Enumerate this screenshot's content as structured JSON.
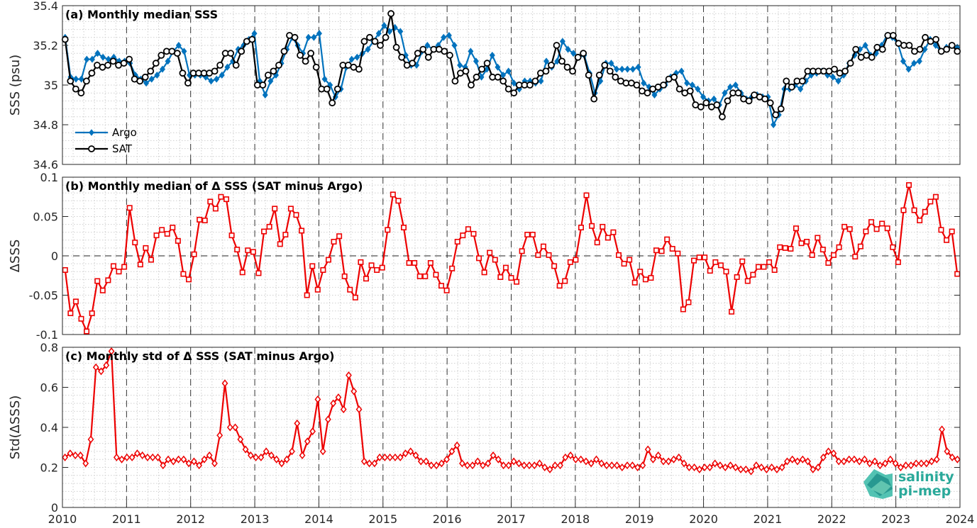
{
  "chart_data": [
    {
      "type": "line",
      "title": "(a) Monthly median SSS",
      "ylabel": "SSS (psu)",
      "xlim": [
        2010,
        2024
      ],
      "ylim": [
        34.6,
        35.4
      ],
      "yticks": [
        "34.6",
        "34.8",
        "35",
        "35.2",
        "35.4"
      ],
      "xticks": [
        "2010",
        "2011",
        "2012",
        "2013",
        "2014",
        "2015",
        "2016",
        "2017",
        "2018",
        "2019",
        "2020",
        "2021",
        "2022",
        "2023",
        "2024"
      ],
      "grid": "dotted",
      "legend_position": "lower-left",
      "series": [
        {
          "name": "Argo",
          "color": "#0072bd",
          "marker": "diamond",
          "values": [
            35.24,
            35.04,
            35.03,
            35.03,
            35.13,
            35.13,
            35.16,
            35.14,
            35.13,
            35.14,
            35.12,
            35.12,
            35.11,
            35.05,
            35.03,
            35.01,
            35.03,
            35.05,
            35.08,
            35.12,
            35.17,
            35.2,
            35.17,
            35.05,
            35.05,
            35.05,
            35.04,
            35.02,
            35.03,
            35.05,
            35.09,
            35.12,
            35.18,
            35.2,
            35.23,
            35.26,
            35.02,
            34.95,
            35.02,
            35.05,
            35.11,
            35.18,
            35.24,
            35.2,
            35.16,
            35.24,
            35.24,
            35.26,
            35.03,
            35.0,
            34.94,
            34.98,
            35.09,
            35.13,
            35.14,
            35.16,
            35.18,
            35.22,
            35.26,
            35.3,
            35.27,
            35.29,
            35.27,
            35.15,
            35.1,
            35.1,
            35.17,
            35.2,
            35.18,
            35.2,
            35.24,
            35.25,
            35.2,
            35.1,
            35.09,
            35.17,
            35.12,
            35.04,
            35.08,
            35.15,
            35.09,
            35.05,
            35.07,
            35.01,
            34.98,
            35.02,
            35.02,
            35.01,
            35.02,
            35.12,
            35.09,
            35.12,
            35.22,
            35.18,
            35.16,
            35.14,
            35.15,
            35.06,
            34.96,
            35.02,
            35.11,
            35.11,
            35.08,
            35.08,
            35.08,
            35.08,
            35.09,
            35.01,
            34.99,
            34.95,
            34.98,
            35.0,
            35.04,
            35.06,
            35.07,
            35.01,
            35.0,
            34.98,
            34.94,
            34.92,
            34.93,
            34.9,
            34.96,
            34.99,
            35.0,
            34.96,
            34.93,
            34.94,
            34.95,
            34.94,
            34.94,
            34.8,
            34.85,
            34.98,
            34.98,
            35.0,
            34.98,
            35.02,
            35.05,
            35.06,
            35.07,
            35.05,
            35.04,
            35.02,
            35.05,
            35.11,
            35.15,
            35.18,
            35.2,
            35.15,
            35.16,
            35.2,
            35.25,
            35.24,
            35.21,
            35.12,
            35.08,
            35.11,
            35.12,
            35.18,
            35.23,
            35.2,
            35.17,
            35.19,
            35.2,
            35.19
          ]
        },
        {
          "name": "SAT",
          "color": "#000000",
          "marker": "circle",
          "values": [
            35.23,
            35.02,
            34.98,
            34.96,
            35.02,
            35.06,
            35.1,
            35.09,
            35.1,
            35.12,
            35.1,
            35.11,
            35.13,
            35.03,
            35.02,
            35.04,
            35.07,
            35.11,
            35.15,
            35.17,
            35.17,
            35.16,
            35.06,
            35.01,
            35.06,
            35.06,
            35.06,
            35.06,
            35.07,
            35.1,
            35.16,
            35.16,
            35.1,
            35.17,
            35.22,
            35.23,
            35.0,
            35.0,
            35.05,
            35.07,
            35.1,
            35.17,
            35.25,
            35.24,
            35.15,
            35.12,
            35.16,
            35.09,
            34.98,
            34.98,
            34.91,
            34.98,
            35.1,
            35.1,
            35.09,
            35.08,
            35.22,
            35.24,
            35.22,
            35.2,
            35.24,
            35.36,
            35.19,
            35.14,
            35.1,
            35.11,
            35.16,
            35.18,
            35.14,
            35.18,
            35.18,
            35.17,
            35.15,
            35.02,
            35.06,
            35.07,
            35.0,
            35.04,
            35.08,
            35.11,
            35.04,
            35.04,
            35.02,
            34.98,
            34.96,
            35.0,
            35.0,
            35.0,
            35.02,
            35.06,
            35.07,
            35.1,
            35.2,
            35.12,
            35.09,
            35.07,
            35.14,
            35.16,
            35.05,
            34.93,
            35.05,
            35.1,
            35.07,
            35.04,
            35.02,
            35.01,
            35.01,
            35.0,
            34.97,
            34.96,
            34.98,
            34.99,
            35.0,
            35.03,
            35.04,
            34.98,
            34.96,
            34.97,
            34.9,
            34.89,
            34.91,
            34.89,
            34.9,
            34.84,
            34.92,
            34.96,
            34.96,
            34.93,
            34.92,
            34.95,
            34.94,
            34.93,
            34.91,
            34.85,
            34.88,
            35.02,
            34.99,
            35.02,
            35.02,
            35.07,
            35.07,
            35.07,
            35.07,
            35.07,
            35.08,
            35.06,
            35.07,
            35.11,
            35.18,
            35.14,
            35.15,
            35.14,
            35.19,
            35.18,
            35.25,
            35.25,
            35.21,
            35.2,
            35.2,
            35.17,
            35.18,
            35.24,
            35.22,
            35.23,
            35.17,
            35.18,
            35.2,
            35.17
          ]
        }
      ]
    },
    {
      "type": "line",
      "title": "(b) Monthly median of Δ SSS (SAT minus Argo)",
      "ylabel": "ΔSSS",
      "xlim": [
        2010,
        2024
      ],
      "ylim": [
        -0.1,
        0.1
      ],
      "yticks": [
        "-0.1",
        "-0.05",
        "0",
        "0.05",
        "0.1"
      ],
      "xticks": [
        "2010",
        "2011",
        "2012",
        "2013",
        "2014",
        "2015",
        "2016",
        "2017",
        "2018",
        "2019",
        "2020",
        "2021",
        "2022",
        "2023",
        "2024"
      ],
      "grid": "dotted",
      "zero_line": true,
      "series": [
        {
          "name": "",
          "color": "#ed0000",
          "marker": "square",
          "values": [
            -0.018,
            -0.073,
            -0.058,
            -0.08,
            -0.096,
            -0.073,
            -0.032,
            -0.044,
            -0.031,
            -0.013,
            -0.02,
            -0.014,
            0.061,
            0.017,
            -0.011,
            0.01,
            -0.005,
            0.026,
            0.033,
            0.028,
            0.036,
            0.019,
            -0.023,
            -0.03,
            0.002,
            0.046,
            0.045,
            0.069,
            0.06,
            0.075,
            0.072,
            0.026,
            0.008,
            -0.021,
            0.007,
            0.005,
            -0.022,
            0.031,
            0.037,
            0.06,
            0.015,
            0.027,
            0.06,
            0.052,
            0.032,
            -0.05,
            -0.013,
            -0.043,
            -0.018,
            -0.005,
            0.018,
            0.025,
            -0.026,
            -0.043,
            -0.053,
            -0.008,
            -0.029,
            -0.012,
            -0.018,
            -0.015,
            0.033,
            0.078,
            0.07,
            0.036,
            -0.009,
            -0.009,
            -0.026,
            -0.026,
            -0.009,
            -0.024,
            -0.038,
            -0.044,
            -0.016,
            0.018,
            0.026,
            0.034,
            0.028,
            -0.003,
            -0.021,
            0.004,
            -0.005,
            -0.027,
            -0.015,
            -0.028,
            -0.033,
            0.006,
            0.027,
            0.027,
            0.001,
            0.012,
            0.001,
            -0.013,
            -0.038,
            -0.032,
            -0.008,
            -0.005,
            0.036,
            0.077,
            0.038,
            0.017,
            0.037,
            0.023,
            0.03,
            0.001,
            -0.01,
            -0.005,
            -0.034,
            -0.02,
            -0.03,
            -0.028,
            0.007,
            0.006,
            0.021,
            0.009,
            0.003,
            -0.068,
            -0.059,
            -0.006,
            -0.002,
            -0.002,
            -0.019,
            -0.008,
            -0.012,
            -0.02,
            -0.071,
            -0.027,
            -0.007,
            -0.032,
            -0.024,
            -0.014,
            -0.014,
            -0.008,
            -0.018,
            0.011,
            0.01,
            0.009,
            0.035,
            0.016,
            0.018,
            0.001,
            0.023,
            0.008,
            -0.009,
            0.001,
            0.011,
            0.037,
            0.034,
            -0.001,
            0.012,
            0.031,
            0.043,
            0.034,
            0.041,
            0.035,
            0.011,
            -0.008,
            0.058,
            0.09,
            0.058,
            0.045,
            0.056,
            0.069,
            0.075,
            0.033,
            0.02,
            0.031,
            -0.023
          ]
        }
      ]
    },
    {
      "type": "line",
      "title": "(c) Monthly std of Δ SSS (SAT minus Argo)",
      "ylabel": "Std(ΔSSS)",
      "xlim": [
        2010,
        2024
      ],
      "ylim": [
        0,
        0.8
      ],
      "yticks": [
        "0",
        "0.2",
        "0.4",
        "0.6",
        "0.8"
      ],
      "xticks": [
        "2010",
        "2011",
        "2012",
        "2013",
        "2014",
        "2015",
        "2016",
        "2017",
        "2018",
        "2019",
        "2020",
        "2021",
        "2022",
        "2023",
        "2024"
      ],
      "grid": "dotted",
      "series": [
        {
          "name": "",
          "color": "#ed0000",
          "marker": "diamond",
          "values": [
            0.25,
            0.27,
            0.26,
            0.26,
            0.22,
            0.34,
            0.7,
            0.68,
            0.71,
            0.78,
            0.25,
            0.24,
            0.25,
            0.25,
            0.27,
            0.26,
            0.25,
            0.25,
            0.25,
            0.21,
            0.24,
            0.23,
            0.24,
            0.24,
            0.22,
            0.23,
            0.21,
            0.24,
            0.26,
            0.22,
            0.36,
            0.62,
            0.4,
            0.4,
            0.34,
            0.29,
            0.26,
            0.25,
            0.25,
            0.28,
            0.26,
            0.24,
            0.22,
            0.24,
            0.28,
            0.42,
            0.26,
            0.33,
            0.38,
            0.54,
            0.28,
            0.44,
            0.52,
            0.55,
            0.49,
            0.66,
            0.58,
            0.49,
            0.23,
            0.22,
            0.22,
            0.25,
            0.25,
            0.25,
            0.25,
            0.25,
            0.27,
            0.28,
            0.26,
            0.23,
            0.23,
            0.21,
            0.21,
            0.22,
            0.24,
            0.28,
            0.31,
            0.22,
            0.21,
            0.21,
            0.23,
            0.21,
            0.22,
            0.26,
            0.24,
            0.21,
            0.21,
            0.23,
            0.22,
            0.21,
            0.21,
            0.21,
            0.22,
            0.2,
            0.19,
            0.21,
            0.21,
            0.25,
            0.26,
            0.24,
            0.24,
            0.23,
            0.22,
            0.24,
            0.22,
            0.21,
            0.21,
            0.21,
            0.2,
            0.21,
            0.21,
            0.2,
            0.21,
            0.29,
            0.24,
            0.26,
            0.23,
            0.23,
            0.24,
            0.25,
            0.22,
            0.2,
            0.2,
            0.19,
            0.2,
            0.2,
            0.22,
            0.21,
            0.2,
            0.21,
            0.2,
            0.19,
            0.19,
            0.18,
            0.21,
            0.2,
            0.19,
            0.2,
            0.19,
            0.2,
            0.23,
            0.24,
            0.23,
            0.24,
            0.23,
            0.19,
            0.2,
            0.25,
            0.28,
            0.27,
            0.23,
            0.23,
            0.24,
            0.24,
            0.23,
            0.24,
            0.22,
            0.23,
            0.21,
            0.22,
            0.24,
            0.22,
            0.2,
            0.21,
            0.21,
            0.22,
            0.22,
            0.22,
            0.23,
            0.24,
            0.39,
            0.28,
            0.25,
            0.24
          ]
        }
      ]
    }
  ],
  "logo": {
    "line1": "salinity",
    "line2": "pi-mep"
  }
}
